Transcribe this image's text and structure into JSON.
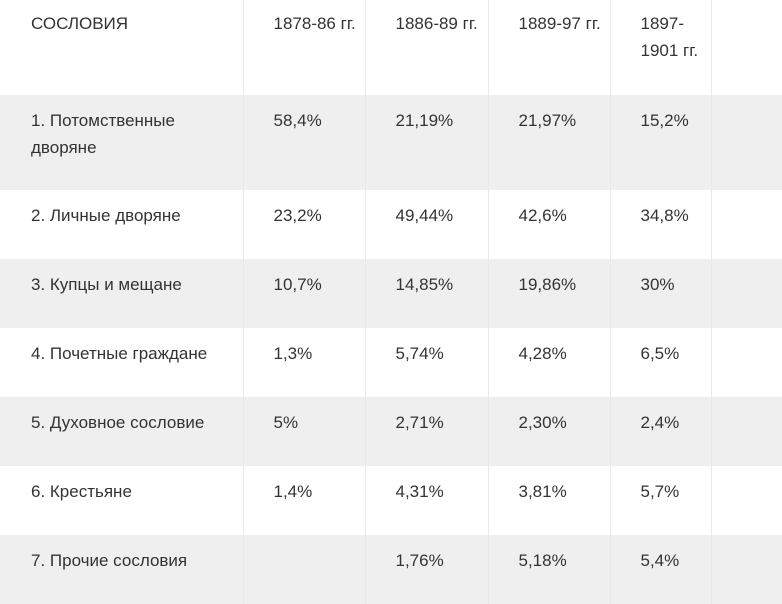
{
  "table": {
    "headers": [
      "СОСЛОВИЯ",
      "1878-86 гг.",
      "1886-89 гг.",
      "1889-97 гг.",
      "1897-1901 гг."
    ],
    "rows": [
      [
        "1. Потомственные дворяне",
        "58,4%",
        "21,19%",
        "21,97%",
        "15,2%"
      ],
      [
        "2. Личные дворяне",
        "23,2%",
        "49,44%",
        "42,6%",
        "34,8%"
      ],
      [
        "3. Купцы и мещане",
        "10,7%",
        "14,85%",
        "19,86%",
        "30%"
      ],
      [
        "4. Почетные граждане",
        "1,3%",
        "5,74%",
        "4,28%",
        "6,5%"
      ],
      [
        "5. Духовное сословие",
        "5%",
        "2,71%",
        "2,30%",
        "2,4%"
      ],
      [
        "6. Крестьяне",
        "1,4%",
        "4,31%",
        "3,81%",
        "5,7%"
      ],
      [
        "7. Прочие сословия",
        "",
        "1,76%",
        "5,18%",
        "5,4%"
      ]
    ]
  },
  "colors": {
    "text": "#333333",
    "row_shade": "#efefef",
    "row_plain": "#ffffff",
    "divider": "#e9e9e9"
  }
}
